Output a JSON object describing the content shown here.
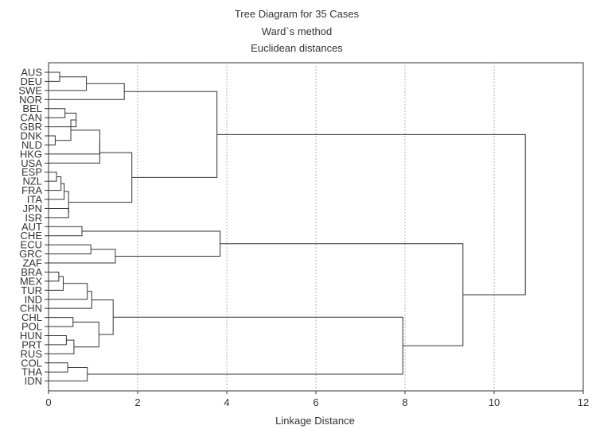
{
  "chart_data": {
    "type": "dendrogram",
    "title": "Tree Diagram for 35 Cases",
    "subtitle": "Ward`s method",
    "subtitle2": "Euclidean distances",
    "xlabel": "Linkage Distance",
    "xlim": [
      0,
      12
    ],
    "xticks": [
      0,
      2,
      4,
      6,
      8,
      10,
      12
    ],
    "grid": "vertical dashed",
    "leaves": [
      "AUS",
      "DEU",
      "SWE",
      "NOR",
      "BEL",
      "CAN",
      "GBR",
      "DNK",
      "NLD",
      "HKG",
      "USA",
      "ESP",
      "NZL",
      "FRA",
      "ITA",
      "JPN",
      "ISR",
      "AUT",
      "CHE",
      "ECU",
      "GRC",
      "ZAF",
      "BRA",
      "MEX",
      "TUR",
      "IND",
      "CHN",
      "CHL",
      "POL",
      "HUN",
      "PRT",
      "RUS",
      "COL",
      "THA",
      "IDN"
    ],
    "merges": [
      {
        "a": "AUS",
        "b": "DEU",
        "height": 0.25
      },
      {
        "a": "c1",
        "b": "SWE",
        "height": 0.85
      },
      {
        "a": "c2",
        "b": "NOR",
        "height": 1.7
      },
      {
        "a": "BEL",
        "b": "CAN",
        "height": 0.37
      },
      {
        "a": "c4",
        "b": "GBR",
        "height": 0.62
      },
      {
        "a": "DNK",
        "b": "NLD",
        "height": 0.15
      },
      {
        "a": "c5",
        "b": "c6",
        "height": 0.5
      },
      {
        "a": "c7",
        "b": "HKG",
        "height": 1.15
      },
      {
        "a": "c8",
        "b": "USA",
        "height": 1.15
      },
      {
        "a": "ESP",
        "b": "NZL",
        "height": 0.18
      },
      {
        "a": "c10",
        "b": "FRA",
        "height": 0.28
      },
      {
        "a": "c11",
        "b": "ITA",
        "height": 0.35
      },
      {
        "a": "JPN",
        "b": "ISR",
        "height": 0.45
      },
      {
        "a": "c12",
        "b": "c13",
        "height": 0.45
      },
      {
        "a": "c9",
        "b": "c14",
        "height": 1.87
      },
      {
        "a": "c3",
        "b": "c15",
        "height": 3.78
      },
      {
        "a": "AUT",
        "b": "CHE",
        "height": 0.75
      },
      {
        "a": "ECU",
        "b": "GRC",
        "height": 0.95
      },
      {
        "a": "c18",
        "b": "ZAF",
        "height": 1.5
      },
      {
        "a": "c17",
        "b": "c19",
        "height": 3.85
      },
      {
        "a": "BRA",
        "b": "MEX",
        "height": 0.23
      },
      {
        "a": "c21",
        "b": "TUR",
        "height": 0.33
      },
      {
        "a": "c22",
        "b": "IND",
        "height": 0.87
      },
      {
        "a": "c23",
        "b": "CHN",
        "height": 0.97
      },
      {
        "a": "CHL",
        "b": "POL",
        "height": 0.55
      },
      {
        "a": "HUN",
        "b": "PRT",
        "height": 0.4
      },
      {
        "a": "c26",
        "b": "RUS",
        "height": 0.57
      },
      {
        "a": "c25",
        "b": "c27",
        "height": 1.13
      },
      {
        "a": "c24",
        "b": "c28",
        "height": 1.45
      },
      {
        "a": "COL",
        "b": "THA",
        "height": 0.43
      },
      {
        "a": "c30",
        "b": "IDN",
        "height": 0.87
      },
      {
        "a": "c29",
        "b": "c31",
        "height": 7.95
      },
      {
        "a": "c20",
        "b": "c32",
        "height": 9.3
      },
      {
        "a": "c16",
        "b": "c33",
        "height": 10.7
      }
    ]
  }
}
